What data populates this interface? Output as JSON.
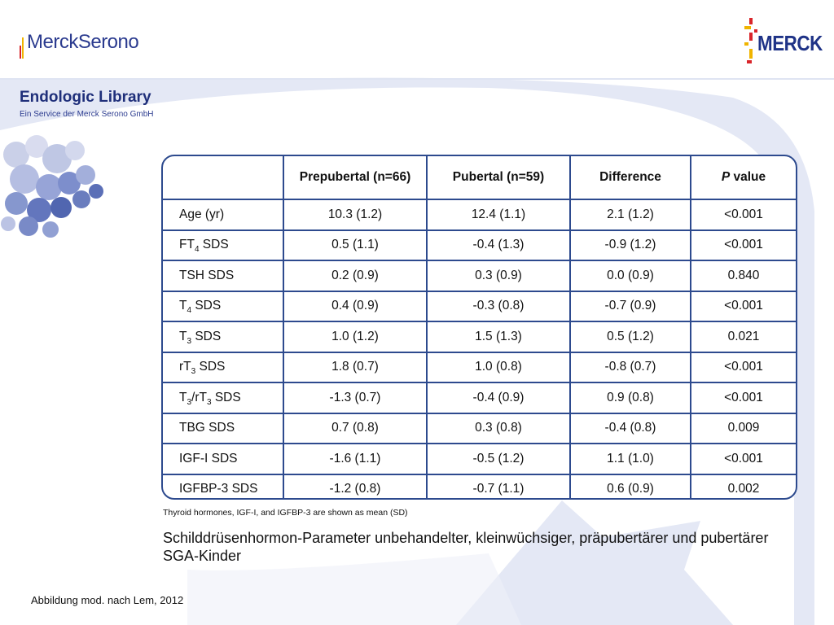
{
  "header": {
    "brand_left": "MerckSerono",
    "brand_right": "MERCK"
  },
  "library": {
    "title": "Endologic Library",
    "subtitle": "Ein Service der Merck Serono GmbH"
  },
  "colors": {
    "primary_blue": "#2d4a8e",
    "brand_red": "#d9252a",
    "brand_yellow": "#f0b400",
    "background_swoosh": "#e2e6f4"
  },
  "table": {
    "headers": {
      "parameter": "",
      "prepubertal": "Prepubertal (n=66)",
      "pubertal": "Pubertal (n=59)",
      "difference": "Difference",
      "p_value_italic": "P",
      "p_value_rest": " value"
    },
    "rows": [
      {
        "param": "Age (yr)",
        "pre_sub": "",
        "post": "",
        "prepubertal": "10.3 (1.2)",
        "pubertal": "12.4 (1.1)",
        "difference": "2.1 (1.2)",
        "p": "<0.001"
      },
      {
        "param": "FT",
        "pre_sub": "4",
        "post": " SDS",
        "prepubertal": "0.5 (1.1)",
        "pubertal": "-0.4 (1.3)",
        "difference": "-0.9 (1.2)",
        "p": "<0.001"
      },
      {
        "param": "TSH SDS",
        "pre_sub": "",
        "post": "",
        "prepubertal": "0.2 (0.9)",
        "pubertal": "0.3 (0.9)",
        "difference": "0.0 (0.9)",
        "p": "0.840"
      },
      {
        "param": "T",
        "pre_sub": "4",
        "post": " SDS",
        "prepubertal": "0.4 (0.9)",
        "pubertal": "-0.3 (0.8)",
        "difference": "-0.7 (0.9)",
        "p": "<0.001"
      },
      {
        "param": "T",
        "pre_sub": "3",
        "post": " SDS",
        "prepubertal": "1.0 (1.2)",
        "pubertal": "1.5 (1.3)",
        "difference": "0.5 (1.2)",
        "p": "0.021"
      },
      {
        "param": "rT",
        "pre_sub": "3",
        "post": " SDS",
        "prepubertal": "1.8 (0.7)",
        "pubertal": "1.0 (0.8)",
        "difference": "-0.8 (0.7)",
        "p": "<0.001"
      },
      {
        "param": "T",
        "pre_sub": "3",
        "post": "/rT",
        "post_sub": "3",
        "post2": " SDS",
        "prepubertal": "-1.3 (0.7)",
        "pubertal": "-0.4 (0.9)",
        "difference": "0.9 (0.8)",
        "p": "<0.001"
      },
      {
        "param": "TBG SDS",
        "pre_sub": "",
        "post": "",
        "prepubertal": "0.7 (0.8)",
        "pubertal": "0.3 (0.8)",
        "difference": "-0.4 (0.8)",
        "p": "0.009"
      },
      {
        "param": "IGF-I SDS",
        "pre_sub": "",
        "post": "",
        "prepubertal": "-1.6 (1.1)",
        "pubertal": "-0.5 (1.2)",
        "difference": "1.1 (1.0)",
        "p": "<0.001"
      },
      {
        "param": "IGFBP-3 SDS",
        "pre_sub": "",
        "post": "",
        "prepubertal": "-1.2 (0.8)",
        "pubertal": "-0.7 (1.1)",
        "difference": "0.6 (0.9)",
        "p": "0.002"
      }
    ]
  },
  "footnote": "Thyroid hormones, IGF-I, and IGFBP-3 are shown as mean (SD)",
  "caption": "Schilddrüsenhormon-Parameter unbehandelter, kleinwüchsiger, präpubertärer und pubertärer SGA-Kinder",
  "source": "Abbildung mod. nach Lem, 2012"
}
